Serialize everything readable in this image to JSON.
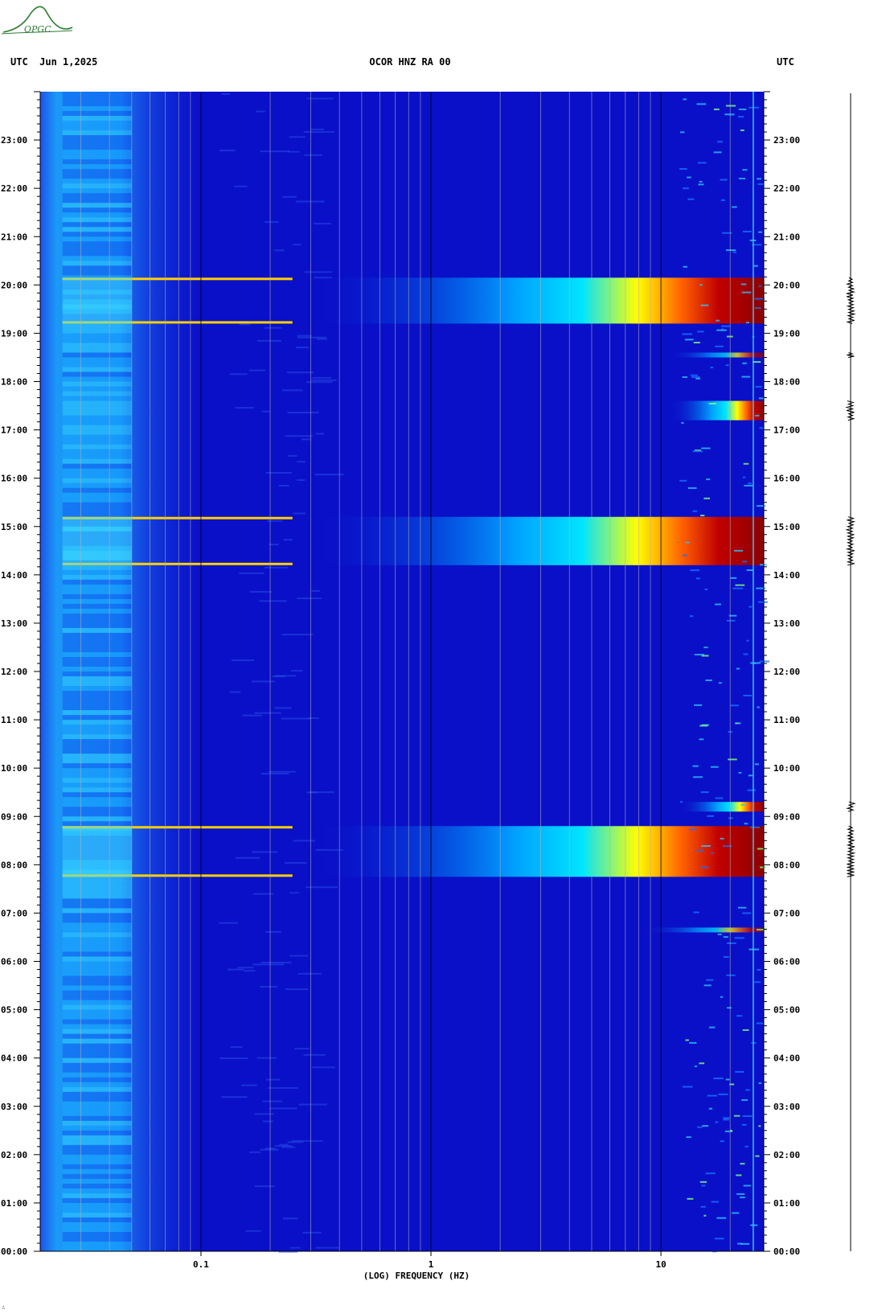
{
  "header": {
    "left": "UTC  Jun 1,2025",
    "center": "OCOR HNZ RA 00",
    "right": "UTC"
  },
  "logo": {
    "text": "OPGC",
    "color": "#2e7d32"
  },
  "chart_data": {
    "type": "heatmap",
    "title": "OCOR HNZ RA 00",
    "date": "Jun 1,2025",
    "xlabel": "(LOG) FREQUENCY (HZ)",
    "ylabel": "UTC",
    "x_scale": "log",
    "xlim_hz": [
      0.02,
      28
    ],
    "x_ticks": [
      0.1,
      1,
      10
    ],
    "x_tick_labels": [
      "0.1",
      "1",
      "10"
    ],
    "ylim_hours": [
      0,
      24
    ],
    "y_ticks": [
      0,
      1,
      2,
      3,
      4,
      5,
      6,
      7,
      8,
      9,
      10,
      11,
      12,
      13,
      14,
      15,
      16,
      17,
      18,
      19,
      20,
      21,
      22,
      23
    ],
    "y_tick_labels": [
      "00:00",
      "01:00",
      "02:00",
      "03:00",
      "04:00",
      "05:00",
      "06:00",
      "07:00",
      "08:00",
      "09:00",
      "10:00",
      "11:00",
      "12:00",
      "13:00",
      "14:00",
      "15:00",
      "16:00",
      "17:00",
      "18:00",
      "19:00",
      "20:00",
      "21:00",
      "22:00",
      "23:00"
    ],
    "colormap": [
      "#00008b",
      "#0000cd",
      "#0040ff",
      "#00a0ff",
      "#00e5ff",
      "#80ff80",
      "#ffff00",
      "#ff8000",
      "#ff0000",
      "#8b0000"
    ],
    "background_color": "#0a10c8",
    "events": [
      {
        "start_hour": 7.75,
        "end_hour": 8.8,
        "peak_low_hz": 10,
        "intensity": "high"
      },
      {
        "start_hour": 14.2,
        "end_hour": 15.2,
        "peak_low_hz": 10,
        "intensity": "high"
      },
      {
        "start_hour": 19.2,
        "end_hour": 20.15,
        "peak_low_hz": 10,
        "intensity": "high"
      },
      {
        "start_hour": 17.2,
        "end_hour": 17.6,
        "peak_low_hz": 18,
        "intensity": "high"
      },
      {
        "start_hour": 9.1,
        "end_hour": 9.3,
        "peak_low_hz": 20,
        "intensity": "high"
      },
      {
        "start_hour": 18.5,
        "end_hour": 18.6,
        "peak_low_hz": 18,
        "intensity": "medium"
      },
      {
        "start_hour": 6.6,
        "end_hour": 6.7,
        "peak_low_hz": 14,
        "intensity": "medium"
      }
    ],
    "seismogram_bursts_hours": [
      [
        7.75,
        8.8
      ],
      [
        14.2,
        15.2
      ],
      [
        19.2,
        20.15
      ],
      [
        17.2,
        17.6
      ],
      [
        9.1,
        9.3
      ],
      [
        18.5,
        18.6
      ]
    ]
  },
  "footer": {
    "mark": "∴"
  }
}
